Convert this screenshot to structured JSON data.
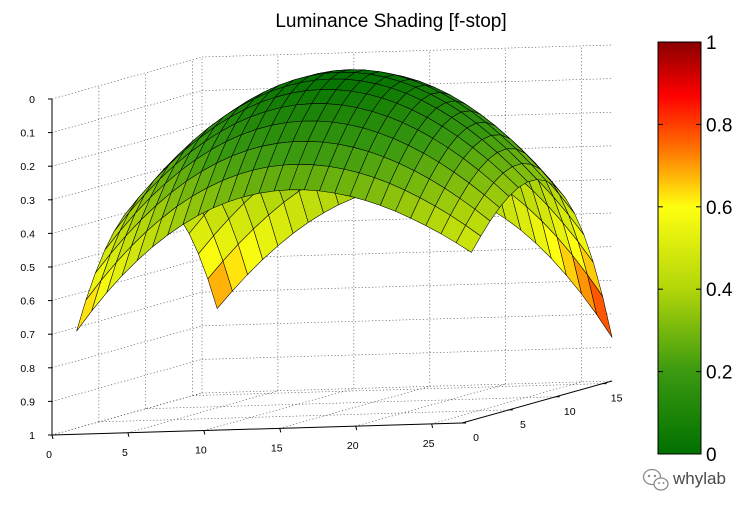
{
  "chart_data": {
    "type": "surface",
    "title": "Luminance Shading [f-stop]",
    "xlabel": "",
    "ylabel": "",
    "zlabel": "",
    "xlim": [
      0,
      27
    ],
    "ylim": [
      0,
      16
    ],
    "zlim": [
      0,
      1
    ],
    "z_reversed": true,
    "grid": true,
    "x_ticks": [
      "0",
      "5",
      "10",
      "15",
      "20",
      "25"
    ],
    "y_ticks": [
      "0",
      "5",
      "10",
      "15"
    ],
    "z_ticks": [
      "0",
      "0.1",
      "0.2",
      "0.3",
      "0.4",
      "0.5",
      "0.6",
      "0.7",
      "0.8",
      "0.9",
      "1"
    ],
    "surface_grid": {
      "x": [
        1,
        27
      ],
      "y": [
        1,
        16
      ],
      "center_value": 0.0,
      "corner_values": {
        "x1_y1": 0.7,
        "x27_y1": 0.5,
        "x1_y16": 0.75,
        "x27_y16": 0.87
      },
      "colormap": "green-yellow-red"
    },
    "colorbar": {
      "ticks": [
        "0",
        "0.2",
        "0.4",
        "0.6",
        "0.8",
        "1"
      ],
      "colors": [
        "#007000",
        "#3b9a10",
        "#b2d60a",
        "#ffff10",
        "#ff6a00",
        "#ff0000",
        "#8a0000"
      ]
    }
  },
  "watermark": {
    "text": "whylab",
    "icon": "wechat-icon"
  }
}
